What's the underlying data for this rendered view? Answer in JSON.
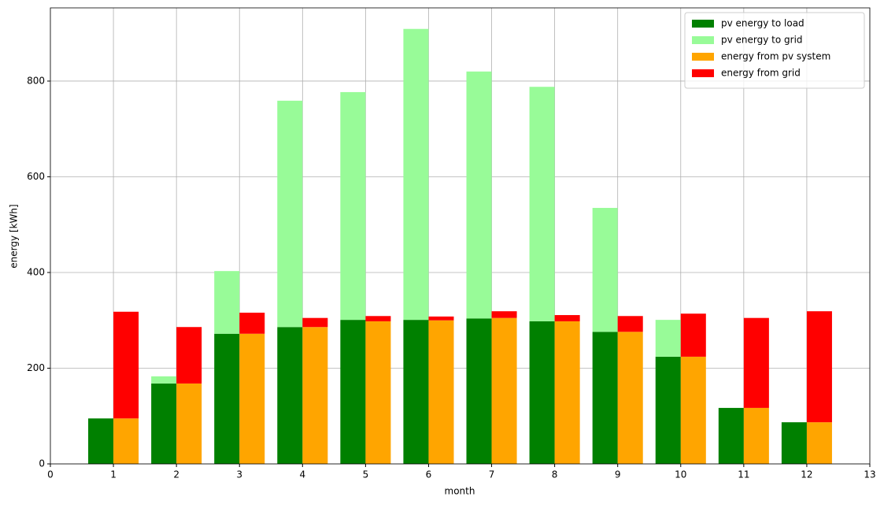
{
  "chart_data": {
    "type": "grouped_stacked_bar",
    "xlabel": "month",
    "ylabel": "energy [kWh]",
    "x": [
      1,
      2,
      3,
      4,
      5,
      6,
      7,
      8,
      9,
      10,
      11,
      12
    ],
    "series": [
      {
        "name": "pv energy to load",
        "color": "#008000",
        "stack": 0,
        "values": [
          95,
          168,
          272,
          286,
          301,
          301,
          304,
          298,
          276,
          224,
          117,
          87
        ]
      },
      {
        "name": "pv energy to grid",
        "color": "#98fb98",
        "stack": 0,
        "values": [
          0,
          15,
          131,
          473,
          476,
          608,
          516,
          490,
          259,
          77,
          0,
          0
        ]
      },
      {
        "name": "energy from pv system",
        "color": "#ffa500",
        "stack": 1,
        "values": [
          95,
          168,
          272,
          286,
          298,
          300,
          305,
          298,
          276,
          224,
          117,
          87
        ]
      },
      {
        "name": "energy from grid",
        "color": "#ff0000",
        "stack": 1,
        "values": [
          223,
          118,
          44,
          19,
          11,
          8,
          14,
          13,
          33,
          90,
          188,
          232
        ]
      }
    ],
    "xlim": [
      0,
      13
    ],
    "xticks": [
      0,
      1,
      2,
      3,
      4,
      5,
      6,
      7,
      8,
      9,
      10,
      11,
      12,
      13
    ],
    "ylim": [
      0,
      953
    ],
    "yticks": [
      0,
      200,
      400,
      600,
      800
    ],
    "grid": true,
    "legend": "upper right"
  }
}
